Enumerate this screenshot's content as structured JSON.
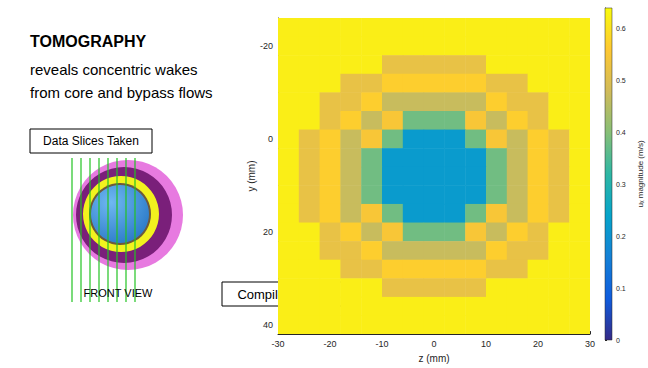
{
  "chart_data": {
    "type": "heatmap",
    "title": "TOMOGRAPHY",
    "subtitle": [
      "reveals concentric wakes",
      "from core and bypass flows"
    ],
    "annotations": [
      "Data Slices Taken",
      "FRONT VIEW",
      "Compiled Slices"
    ],
    "xlabel": "z (mm)",
    "ylabel": "y (mm)",
    "xlim": [
      -30,
      30
    ],
    "xticks": [
      -30,
      -20,
      -10,
      0,
      10,
      20,
      30
    ],
    "ylim": [
      -26,
      42
    ],
    "yticks": [
      -20,
      0,
      20,
      40
    ],
    "y_reversed": true,
    "z": [
      -28,
      -24,
      -20,
      -16,
      -12,
      -8,
      -4,
      0,
      4,
      8,
      12,
      16,
      20,
      24,
      28
    ],
    "y": [
      -24,
      -20,
      -16,
      -12,
      -8,
      -4,
      0,
      4,
      8,
      12,
      16,
      20,
      24,
      28,
      32,
      36,
      40
    ],
    "cells": [
      [
        0.62,
        0.62,
        0.62,
        0.62,
        0.62,
        0.62,
        0.62,
        0.62,
        0.62,
        0.62,
        0.62,
        0.62,
        0.62,
        0.62,
        0.62
      ],
      [
        0.62,
        0.62,
        0.62,
        0.62,
        0.62,
        0.62,
        0.62,
        0.62,
        0.62,
        0.62,
        0.62,
        0.62,
        0.62,
        0.62,
        0.62
      ],
      [
        0.62,
        0.62,
        0.62,
        0.62,
        0.62,
        0.52,
        0.52,
        0.52,
        0.52,
        0.52,
        0.62,
        0.62,
        0.62,
        0.62,
        0.62
      ],
      [
        0.62,
        0.62,
        0.62,
        0.52,
        0.52,
        0.57,
        0.57,
        0.57,
        0.57,
        0.57,
        0.52,
        0.52,
        0.62,
        0.62,
        0.62
      ],
      [
        0.62,
        0.62,
        0.52,
        0.52,
        0.57,
        0.47,
        0.47,
        0.47,
        0.47,
        0.47,
        0.57,
        0.52,
        0.52,
        0.62,
        0.62
      ],
      [
        0.62,
        0.62,
        0.52,
        0.57,
        0.47,
        0.55,
        0.38,
        0.38,
        0.38,
        0.55,
        0.47,
        0.57,
        0.52,
        0.62,
        0.62
      ],
      [
        0.62,
        0.52,
        0.57,
        0.47,
        0.55,
        0.38,
        0.22,
        0.22,
        0.22,
        0.38,
        0.55,
        0.47,
        0.57,
        0.52,
        0.62
      ],
      [
        0.62,
        0.52,
        0.57,
        0.47,
        0.38,
        0.22,
        0.22,
        0.22,
        0.22,
        0.22,
        0.38,
        0.47,
        0.57,
        0.52,
        0.62
      ],
      [
        0.62,
        0.52,
        0.57,
        0.47,
        0.38,
        0.22,
        0.22,
        0.22,
        0.22,
        0.22,
        0.38,
        0.47,
        0.57,
        0.52,
        0.62
      ],
      [
        0.62,
        0.52,
        0.57,
        0.47,
        0.38,
        0.22,
        0.22,
        0.22,
        0.22,
        0.22,
        0.38,
        0.47,
        0.57,
        0.52,
        0.62
      ],
      [
        0.62,
        0.52,
        0.57,
        0.47,
        0.55,
        0.38,
        0.22,
        0.22,
        0.22,
        0.38,
        0.55,
        0.47,
        0.57,
        0.52,
        0.62
      ],
      [
        0.62,
        0.62,
        0.52,
        0.57,
        0.47,
        0.55,
        0.38,
        0.38,
        0.38,
        0.55,
        0.47,
        0.57,
        0.52,
        0.62,
        0.62
      ],
      [
        0.62,
        0.62,
        0.52,
        0.52,
        0.57,
        0.47,
        0.47,
        0.47,
        0.47,
        0.47,
        0.57,
        0.52,
        0.52,
        0.62,
        0.62
      ],
      [
        0.62,
        0.62,
        0.62,
        0.52,
        0.52,
        0.57,
        0.57,
        0.57,
        0.57,
        0.57,
        0.52,
        0.52,
        0.62,
        0.62,
        0.62
      ],
      [
        0.62,
        0.62,
        0.62,
        0.62,
        0.62,
        0.52,
        0.52,
        0.52,
        0.52,
        0.52,
        0.62,
        0.62,
        0.62,
        0.62,
        0.62
      ],
      [
        0.62,
        0.62,
        0.62,
        0.62,
        0.62,
        0.62,
        0.62,
        0.62,
        0.62,
        0.62,
        0.62,
        0.62,
        0.62,
        0.62,
        0.62
      ],
      [
        0.62,
        0.62,
        0.62,
        0.62,
        0.62,
        0.62,
        0.62,
        0.62,
        0.62,
        0.62,
        0.62,
        0.62,
        0.62,
        0.62,
        0.62
      ]
    ],
    "colorbar": {
      "label": "uₓ magnitude (m/s)",
      "range": [
        0,
        0.64
      ],
      "ticks": [
        0,
        0.1,
        0.2,
        0.3,
        0.4,
        0.5,
        0.6
      ]
    }
  }
}
